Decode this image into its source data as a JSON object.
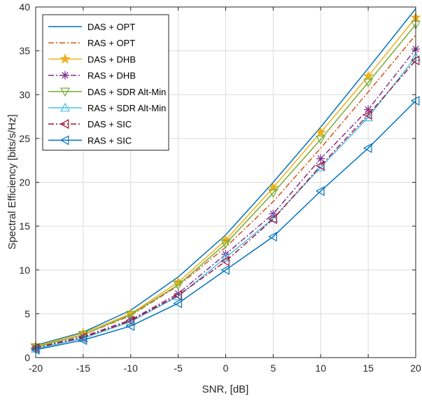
{
  "chart_data": {
    "type": "line",
    "title": "",
    "xlabel": "SNR, [dB]",
    "ylabel": "Spectral Efficiency [bits/s/Hz]",
    "xlim": [
      -20,
      20
    ],
    "ylim": [
      0,
      40
    ],
    "xticks": [
      -20,
      -15,
      -10,
      -5,
      0,
      5,
      10,
      15,
      20
    ],
    "yticks": [
      0,
      5,
      10,
      15,
      20,
      25,
      30,
      35,
      40
    ],
    "grid": true,
    "legend_position": "top-left",
    "x": [
      -20,
      -15,
      -10,
      -5,
      0,
      5,
      10,
      15,
      20
    ],
    "series": [
      {
        "name": "DAS + OPT",
        "color": "#0072BD",
        "line": "solid",
        "marker": "none",
        "values": [
          1.4,
          2.9,
          5.4,
          9.2,
          14.0,
          20.0,
          26.3,
          33.0,
          39.8
        ]
      },
      {
        "name": "RAS + OPT",
        "color": "#D95319",
        "line": "dashdot",
        "marker": "none",
        "values": [
          1.2,
          2.6,
          4.8,
          8.2,
          12.6,
          17.8,
          23.9,
          30.3,
          36.8
        ]
      },
      {
        "name": "DAS + DHB",
        "color": "#EDB120",
        "line": "solid",
        "marker": "star",
        "values": [
          1.3,
          2.8,
          5.0,
          8.6,
          13.4,
          19.4,
          25.7,
          32.1,
          38.8
        ]
      },
      {
        "name": "RAS + DHB",
        "color": "#7E2F8E",
        "line": "dashdot",
        "marker": "asterisk",
        "values": [
          1.1,
          2.4,
          4.3,
          7.3,
          11.8,
          16.4,
          22.7,
          28.3,
          35.2
        ]
      },
      {
        "name": "DAS + SDR Alt-Min",
        "color": "#77AC30",
        "line": "solid",
        "marker": "triangle-down",
        "values": [
          1.2,
          2.6,
          4.9,
          8.3,
          13.0,
          18.8,
          24.9,
          31.4,
          38.0
        ]
      },
      {
        "name": "RAS + SDR Alt-Min",
        "color": "#4DBEEE",
        "line": "solid",
        "marker": "triangle-up",
        "values": [
          1.0,
          2.2,
          4.1,
          7.0,
          11.4,
          15.9,
          21.7,
          27.4,
          34.3
        ]
      },
      {
        "name": "DAS + SIC",
        "color": "#A2142F",
        "line": "dashdot",
        "marker": "triangle-left",
        "values": [
          1.1,
          2.3,
          4.2,
          7.1,
          11.0,
          15.8,
          21.9,
          27.7,
          33.9
        ]
      },
      {
        "name": "RAS + SIC",
        "color": "#0072BD",
        "line": "solid",
        "marker": "triangle-left",
        "values": [
          0.9,
          2.0,
          3.6,
          6.2,
          10.0,
          13.8,
          19.0,
          23.9,
          29.3
        ]
      }
    ]
  }
}
